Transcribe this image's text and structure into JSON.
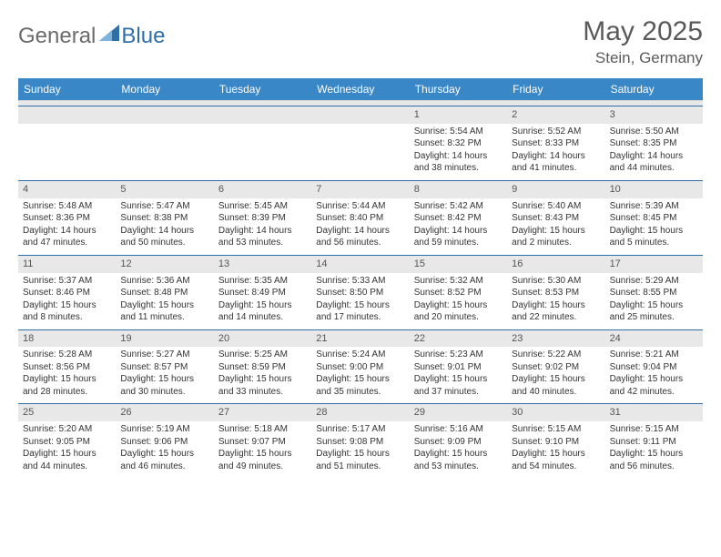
{
  "logo": {
    "text1": "General",
    "text2": "Blue"
  },
  "title": "May 2025",
  "location": "Stein, Germany",
  "colors": {
    "header_bg": "#3a87c7",
    "header_text": "#ffffff",
    "week_border": "#2f6fa7",
    "daynum_bg": "#e8e8e8",
    "text": "#333333",
    "title_text": "#5a5a5a",
    "logo_gray": "#6b6b6b",
    "logo_blue": "#2f6fa7"
  },
  "day_names": [
    "Sunday",
    "Monday",
    "Tuesday",
    "Wednesday",
    "Thursday",
    "Friday",
    "Saturday"
  ],
  "weeks": [
    [
      {
        "day": "",
        "lines": []
      },
      {
        "day": "",
        "lines": []
      },
      {
        "day": "",
        "lines": []
      },
      {
        "day": "",
        "lines": []
      },
      {
        "day": "1",
        "lines": [
          "Sunrise: 5:54 AM",
          "Sunset: 8:32 PM",
          "Daylight: 14 hours and 38 minutes."
        ]
      },
      {
        "day": "2",
        "lines": [
          "Sunrise: 5:52 AM",
          "Sunset: 8:33 PM",
          "Daylight: 14 hours and 41 minutes."
        ]
      },
      {
        "day": "3",
        "lines": [
          "Sunrise: 5:50 AM",
          "Sunset: 8:35 PM",
          "Daylight: 14 hours and 44 minutes."
        ]
      }
    ],
    [
      {
        "day": "4",
        "lines": [
          "Sunrise: 5:48 AM",
          "Sunset: 8:36 PM",
          "Daylight: 14 hours and 47 minutes."
        ]
      },
      {
        "day": "5",
        "lines": [
          "Sunrise: 5:47 AM",
          "Sunset: 8:38 PM",
          "Daylight: 14 hours and 50 minutes."
        ]
      },
      {
        "day": "6",
        "lines": [
          "Sunrise: 5:45 AM",
          "Sunset: 8:39 PM",
          "Daylight: 14 hours and 53 minutes."
        ]
      },
      {
        "day": "7",
        "lines": [
          "Sunrise: 5:44 AM",
          "Sunset: 8:40 PM",
          "Daylight: 14 hours and 56 minutes."
        ]
      },
      {
        "day": "8",
        "lines": [
          "Sunrise: 5:42 AM",
          "Sunset: 8:42 PM",
          "Daylight: 14 hours and 59 minutes."
        ]
      },
      {
        "day": "9",
        "lines": [
          "Sunrise: 5:40 AM",
          "Sunset: 8:43 PM",
          "Daylight: 15 hours and 2 minutes."
        ]
      },
      {
        "day": "10",
        "lines": [
          "Sunrise: 5:39 AM",
          "Sunset: 8:45 PM",
          "Daylight: 15 hours and 5 minutes."
        ]
      }
    ],
    [
      {
        "day": "11",
        "lines": [
          "Sunrise: 5:37 AM",
          "Sunset: 8:46 PM",
          "Daylight: 15 hours and 8 minutes."
        ]
      },
      {
        "day": "12",
        "lines": [
          "Sunrise: 5:36 AM",
          "Sunset: 8:48 PM",
          "Daylight: 15 hours and 11 minutes."
        ]
      },
      {
        "day": "13",
        "lines": [
          "Sunrise: 5:35 AM",
          "Sunset: 8:49 PM",
          "Daylight: 15 hours and 14 minutes."
        ]
      },
      {
        "day": "14",
        "lines": [
          "Sunrise: 5:33 AM",
          "Sunset: 8:50 PM",
          "Daylight: 15 hours and 17 minutes."
        ]
      },
      {
        "day": "15",
        "lines": [
          "Sunrise: 5:32 AM",
          "Sunset: 8:52 PM",
          "Daylight: 15 hours and 20 minutes."
        ]
      },
      {
        "day": "16",
        "lines": [
          "Sunrise: 5:30 AM",
          "Sunset: 8:53 PM",
          "Daylight: 15 hours and 22 minutes."
        ]
      },
      {
        "day": "17",
        "lines": [
          "Sunrise: 5:29 AM",
          "Sunset: 8:55 PM",
          "Daylight: 15 hours and 25 minutes."
        ]
      }
    ],
    [
      {
        "day": "18",
        "lines": [
          "Sunrise: 5:28 AM",
          "Sunset: 8:56 PM",
          "Daylight: 15 hours and 28 minutes."
        ]
      },
      {
        "day": "19",
        "lines": [
          "Sunrise: 5:27 AM",
          "Sunset: 8:57 PM",
          "Daylight: 15 hours and 30 minutes."
        ]
      },
      {
        "day": "20",
        "lines": [
          "Sunrise: 5:25 AM",
          "Sunset: 8:59 PM",
          "Daylight: 15 hours and 33 minutes."
        ]
      },
      {
        "day": "21",
        "lines": [
          "Sunrise: 5:24 AM",
          "Sunset: 9:00 PM",
          "Daylight: 15 hours and 35 minutes."
        ]
      },
      {
        "day": "22",
        "lines": [
          "Sunrise: 5:23 AM",
          "Sunset: 9:01 PM",
          "Daylight: 15 hours and 37 minutes."
        ]
      },
      {
        "day": "23",
        "lines": [
          "Sunrise: 5:22 AM",
          "Sunset: 9:02 PM",
          "Daylight: 15 hours and 40 minutes."
        ]
      },
      {
        "day": "24",
        "lines": [
          "Sunrise: 5:21 AM",
          "Sunset: 9:04 PM",
          "Daylight: 15 hours and 42 minutes."
        ]
      }
    ],
    [
      {
        "day": "25",
        "lines": [
          "Sunrise: 5:20 AM",
          "Sunset: 9:05 PM",
          "Daylight: 15 hours and 44 minutes."
        ]
      },
      {
        "day": "26",
        "lines": [
          "Sunrise: 5:19 AM",
          "Sunset: 9:06 PM",
          "Daylight: 15 hours and 46 minutes."
        ]
      },
      {
        "day": "27",
        "lines": [
          "Sunrise: 5:18 AM",
          "Sunset: 9:07 PM",
          "Daylight: 15 hours and 49 minutes."
        ]
      },
      {
        "day": "28",
        "lines": [
          "Sunrise: 5:17 AM",
          "Sunset: 9:08 PM",
          "Daylight: 15 hours and 51 minutes."
        ]
      },
      {
        "day": "29",
        "lines": [
          "Sunrise: 5:16 AM",
          "Sunset: 9:09 PM",
          "Daylight: 15 hours and 53 minutes."
        ]
      },
      {
        "day": "30",
        "lines": [
          "Sunrise: 5:15 AM",
          "Sunset: 9:10 PM",
          "Daylight: 15 hours and 54 minutes."
        ]
      },
      {
        "day": "31",
        "lines": [
          "Sunrise: 5:15 AM",
          "Sunset: 9:11 PM",
          "Daylight: 15 hours and 56 minutes."
        ]
      }
    ]
  ]
}
